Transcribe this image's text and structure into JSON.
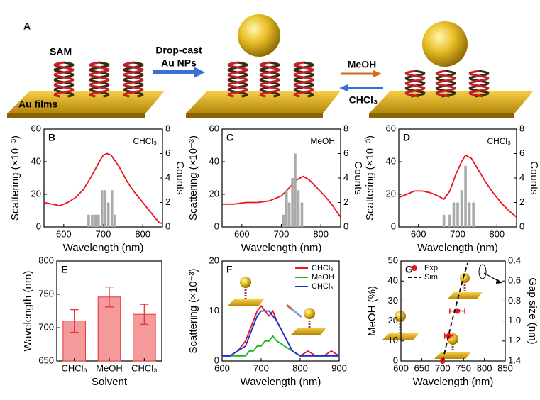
{
  "schematic": {
    "label": "A",
    "sam": "SAM",
    "films": "Au films",
    "dropcast": "Drop-cast",
    "nps": "Au NPs",
    "forward": "MeOH",
    "backward": "CHCl₃"
  },
  "chart_data": [
    {
      "type": "line",
      "label": "B",
      "annotation": "CHCl₃",
      "xlabel": "Wavelength (nm)",
      "ylabel": "Scattering (×10⁻³)",
      "y2label": "Counts",
      "xlim": [
        550,
        850
      ],
      "xticks": [
        600,
        700,
        800
      ],
      "ylim": [
        0,
        60
      ],
      "yticks": [
        0,
        20,
        40,
        60
      ],
      "y2lim": [
        0,
        8
      ],
      "y2ticks": [
        0,
        2,
        4,
        6,
        8
      ],
      "series": [
        {
          "type": "line",
          "color": "#e8141b",
          "x": [
            550,
            570,
            590,
            610,
            630,
            650,
            670,
            690,
            700,
            710,
            720,
            740,
            760,
            780,
            800,
            820,
            840,
            850
          ],
          "values": [
            15,
            14,
            13,
            15,
            18,
            23,
            31,
            40,
            44,
            45,
            44,
            37,
            28,
            21,
            15,
            9,
            3,
            2
          ]
        },
        {
          "type": "bar",
          "axis": "y2",
          "color": "#aaaaaa",
          "x": [
            663,
            672,
            680,
            688,
            697,
            705,
            713,
            722,
            730
          ],
          "values": [
            1,
            1,
            1,
            1,
            3,
            3,
            2,
            3,
            1
          ]
        }
      ]
    },
    {
      "type": "line",
      "label": "C",
      "annotation": "MeOH",
      "xlabel": "Wavelength (nm)",
      "ylabel": "Scattering (×10⁻³)",
      "y2label": "Counts",
      "xlim": [
        550,
        850
      ],
      "xticks": [
        600,
        700,
        800
      ],
      "ylim": [
        0,
        60
      ],
      "yticks": [
        0,
        20,
        40,
        60
      ],
      "y2lim": [
        0,
        8
      ],
      "y2ticks": [
        0,
        2,
        4,
        6,
        8
      ],
      "series": [
        {
          "type": "line",
          "color": "#e8141b",
          "x": [
            550,
            580,
            610,
            640,
            670,
            700,
            720,
            740,
            755,
            770,
            790,
            810,
            830,
            850
          ],
          "values": [
            14,
            14,
            15,
            15,
            16,
            19,
            24,
            29,
            31,
            29,
            24,
            19,
            13,
            6
          ]
        },
        {
          "type": "bar",
          "axis": "y2",
          "color": "#aaaaaa",
          "x": [
            705,
            713,
            720,
            728,
            735,
            743,
            752
          ],
          "values": [
            1,
            3,
            2,
            4,
            6,
            3,
            2
          ]
        }
      ]
    },
    {
      "type": "line",
      "label": "D",
      "annotation": "CHCl₃",
      "xlabel": "Wavelength (nm)",
      "ylabel": "Scattering (×10⁻³)",
      "y2label": "Counts",
      "xlim": [
        550,
        850
      ],
      "xticks": [
        600,
        700,
        800
      ],
      "ylim": [
        0,
        60
      ],
      "yticks": [
        0,
        20,
        40,
        60
      ],
      "y2lim": [
        0,
        8
      ],
      "y2ticks": [
        0,
        2,
        4,
        6,
        8
      ],
      "series": [
        {
          "type": "line",
          "color": "#e8141b",
          "x": [
            550,
            570,
            590,
            610,
            630,
            650,
            665,
            680,
            695,
            710,
            720,
            735,
            750,
            770,
            790,
            810,
            830,
            850
          ],
          "values": [
            18,
            20,
            22,
            22,
            21,
            19,
            17,
            22,
            32,
            40,
            44,
            42,
            36,
            28,
            21,
            15,
            10,
            6
          ]
        },
        {
          "type": "bar",
          "axis": "y2",
          "color": "#aaaaaa",
          "x": [
            665,
            680,
            690,
            700,
            710,
            720,
            730,
            740
          ],
          "values": [
            1,
            1,
            2,
            2,
            3,
            5,
            2,
            2
          ]
        }
      ]
    },
    {
      "type": "bar",
      "label": "E",
      "xlabel": "Solvent",
      "ylabel": "Wavelength (nm)",
      "categories": [
        "CHCl₃",
        "MeOH",
        "CHCl₃"
      ],
      "values": [
        710,
        746,
        720
      ],
      "errors": [
        17,
        15,
        15
      ],
      "color": "#f59a9a",
      "ylim": [
        650,
        800
      ],
      "yticks": [
        650,
        700,
        750,
        800
      ]
    },
    {
      "type": "line",
      "label": "F",
      "xlabel": "Wavelength (nm)",
      "ylabel": "Scattering (×10⁻³)",
      "legend": "top-right",
      "xlim": [
        600,
        900
      ],
      "xticks": [
        600,
        700,
        800,
        900
      ],
      "ylim": [
        0,
        20
      ],
      "yticks": [
        0,
        10,
        20
      ],
      "series": [
        {
          "type": "line",
          "name": "CHCl₃",
          "color": "#e8141b",
          "x": [
            600,
            620,
            640,
            660,
            670,
            680,
            690,
            700,
            710,
            720,
            730,
            740,
            760,
            780,
            800,
            820,
            840,
            860,
            880,
            900
          ],
          "values": [
            1,
            1,
            2,
            4,
            6,
            8,
            10,
            11,
            10,
            9,
            10,
            8,
            5,
            2,
            1,
            2,
            1,
            1,
            2,
            1
          ]
        },
        {
          "type": "line",
          "name": "MeOH",
          "color": "#1bb31b",
          "x": [
            600,
            620,
            640,
            660,
            670,
            680,
            690,
            700,
            710,
            720,
            730,
            740,
            760,
            780,
            800,
            820,
            840,
            860,
            880,
            900
          ],
          "values": [
            1,
            1,
            1,
            1,
            2,
            2,
            3,
            3,
            4,
            4,
            5,
            4,
            3,
            2,
            1,
            1,
            1,
            1,
            1,
            1
          ]
        },
        {
          "type": "line",
          "name": "CHCl₃",
          "color": "#1a2fd6",
          "x": [
            600,
            620,
            640,
            660,
            670,
            680,
            690,
            700,
            710,
            720,
            730,
            740,
            760,
            780,
            800,
            820,
            840,
            860,
            880,
            900
          ],
          "values": [
            1,
            1,
            2,
            3,
            5,
            7,
            9,
            10,
            10,
            10,
            9,
            8,
            5,
            2,
            1,
            1,
            1,
            1,
            1,
            1
          ]
        }
      ]
    },
    {
      "type": "scatter",
      "label": "G",
      "xlabel": "Wavelength (nm)",
      "ylabel": "MeOH (%)",
      "y2label": "Gap size (nm)",
      "legend": "top-left",
      "xlim": [
        600,
        850
      ],
      "xticks": [
        600,
        650,
        700,
        750,
        800,
        850
      ],
      "ylim": [
        0,
        50
      ],
      "yticks": [
        0,
        10,
        20,
        30,
        40,
        50
      ],
      "y2lim": [
        1.4,
        0.4
      ],
      "y2ticks": [
        0.4,
        0.6,
        0.8,
        {
          "value": 1,
          "label": "1.0"
        },
        1.2,
        1.4
      ],
      "series": [
        {
          "type": "scatter",
          "name": "Exp.",
          "color": "#e8141b",
          "x": [
            700,
            715,
            735
          ],
          "values": [
            0,
            12.5,
            25
          ],
          "xerr": [
            0,
            10,
            18
          ]
        },
        {
          "type": "line",
          "name": "Sim.",
          "style": "dashed",
          "color": "#000000",
          "x": [
            700,
            710,
            720,
            730,
            740,
            750,
            760
          ],
          "values": [
            0,
            9,
            18,
            26,
            34,
            42,
            49
          ]
        }
      ]
    }
  ]
}
